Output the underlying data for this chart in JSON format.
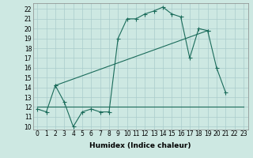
{
  "background_color": "#cde8e2",
  "grid_color": "#aacccc",
  "line_color": "#1a6b5a",
  "xlim": [
    -0.5,
    23.5
  ],
  "ylim": [
    9.7,
    22.6
  ],
  "xticks": [
    0,
    1,
    2,
    3,
    4,
    5,
    6,
    7,
    8,
    9,
    10,
    11,
    12,
    13,
    14,
    15,
    16,
    17,
    18,
    19,
    20,
    21,
    22,
    23
  ],
  "yticks": [
    10,
    11,
    12,
    13,
    14,
    15,
    16,
    17,
    18,
    19,
    20,
    21,
    22
  ],
  "xlabel": "Humidex (Indice chaleur)",
  "fontsize_xlabel": 6.5,
  "fontsize_ticks": 5.5,
  "line1_x": [
    0,
    1,
    2,
    3,
    4,
    5,
    6,
    7,
    8,
    9,
    10,
    11,
    12,
    13,
    14,
    15,
    16,
    17,
    18,
    19,
    20,
    21
  ],
  "line1_y": [
    11.8,
    11.5,
    14.2,
    12.5,
    10.0,
    11.5,
    11.8,
    11.5,
    11.5,
    19.0,
    21.0,
    21.0,
    21.5,
    21.8,
    22.2,
    21.5,
    21.2,
    17.0,
    20.0,
    19.8,
    16.0,
    13.5
  ],
  "line2_x": [
    2,
    19
  ],
  "line2_y": [
    14.2,
    19.8
  ],
  "line3_x": [
    0,
    23
  ],
  "line3_y": [
    12.0,
    12.0
  ],
  "lw": 0.8,
  "ms": 1.8
}
